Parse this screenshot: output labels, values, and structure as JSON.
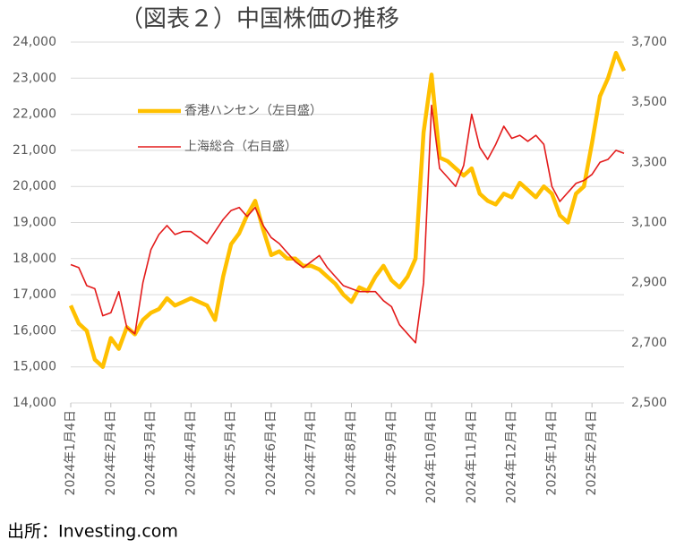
{
  "chart_data": {
    "type": "line",
    "title": "（図表２）中国株価の推移",
    "source": "出所：Investing.com",
    "categories": [
      "2024年1月4日",
      null,
      null,
      null,
      null,
      "2024年2月4日",
      null,
      null,
      null,
      null,
      "2024年3月4日",
      null,
      null,
      null,
      null,
      "2024年4月4日",
      null,
      null,
      null,
      null,
      "2024年5月4日",
      null,
      null,
      null,
      null,
      "2024年6月4日",
      null,
      null,
      null,
      null,
      "2024年7月4日",
      null,
      null,
      null,
      null,
      "2024年8月4日",
      null,
      null,
      null,
      null,
      "2024年9月4日",
      null,
      null,
      null,
      null,
      "2024年10月4日",
      null,
      null,
      null,
      null,
      "2024年11月4日",
      null,
      null,
      null,
      null,
      "2024年12月4日",
      null,
      null,
      null,
      null,
      "2025年1月4日",
      null,
      null,
      null,
      null,
      "2025年2月4日",
      null,
      null,
      null,
      null
    ],
    "series": [
      {
        "name": "香港ハンセン（左目盛）",
        "color": "#ffc000",
        "axis": "y",
        "values": [
          16700,
          16200,
          16000,
          15200,
          15000,
          15800,
          15500,
          16100,
          15900,
          16300,
          16500,
          16600,
          16900,
          16700,
          16800,
          16900,
          16800,
          16700,
          16300,
          17500,
          18400,
          18700,
          19200,
          19600,
          18800,
          18100,
          18200,
          18000,
          18000,
          17800,
          17800,
          17700,
          17500,
          17300,
          17000,
          16800,
          17200,
          17100,
          17500,
          17800,
          17400,
          17200,
          17500,
          18000,
          21500,
          23100,
          20800,
          20700,
          20500,
          20300,
          20500,
          19800,
          19600,
          19500,
          19800,
          19700,
          20100,
          19900,
          19700,
          20000,
          19800,
          19200,
          19000,
          19800,
          20000,
          21200,
          22500,
          23000,
          23700,
          23200
        ]
      },
      {
        "name": "上海総合（右目盛）",
        "color": "#e31b1b",
        "axis": "y2",
        "values": [
          2960,
          2950,
          2890,
          2880,
          2790,
          2800,
          2870,
          2750,
          2730,
          2900,
          3010,
          3060,
          3090,
          3060,
          3070,
          3070,
          3050,
          3030,
          3070,
          3110,
          3140,
          3150,
          3120,
          3150,
          3090,
          3050,
          3030,
          3000,
          2970,
          2950,
          2970,
          2990,
          2950,
          2920,
          2890,
          2880,
          2870,
          2870,
          2870,
          2840,
          2820,
          2760,
          2730,
          2700,
          2900,
          3490,
          3280,
          3250,
          3220,
          3290,
          3460,
          3350,
          3310,
          3360,
          3420,
          3380,
          3390,
          3370,
          3390,
          3360,
          3220,
          3170,
          3200,
          3230,
          3240,
          3260,
          3300,
          3310,
          3340,
          3330
        ]
      }
    ],
    "ylim": [
      14000,
      24000
    ],
    "yticks": [
      {
        "value": 14000,
        "label": "14,000"
      },
      {
        "value": 15000,
        "label": "15,000"
      },
      {
        "value": 16000,
        "label": "16,000"
      },
      {
        "value": 17000,
        "label": "17,000"
      },
      {
        "value": 18000,
        "label": "18,000"
      },
      {
        "value": 19000,
        "label": "19,000"
      },
      {
        "value": 20000,
        "label": "20,000"
      },
      {
        "value": 21000,
        "label": "21,000"
      },
      {
        "value": 22000,
        "label": "22,000"
      },
      {
        "value": 23000,
        "label": "23,000"
      },
      {
        "value": 24000,
        "label": "24,000"
      }
    ],
    "y2lim": [
      2500,
      3700
    ],
    "y2ticks": [
      {
        "value": 2500,
        "label": "2,500"
      },
      {
        "value": 2700,
        "label": "2,700"
      },
      {
        "value": 2900,
        "label": "2,900"
      },
      {
        "value": 3100,
        "label": "3,100"
      },
      {
        "value": 3300,
        "label": "3,300"
      },
      {
        "value": 3500,
        "label": "3,500"
      },
      {
        "value": 3700,
        "label": "3,700"
      }
    ],
    "grid": true,
    "legend": "upper-left"
  }
}
